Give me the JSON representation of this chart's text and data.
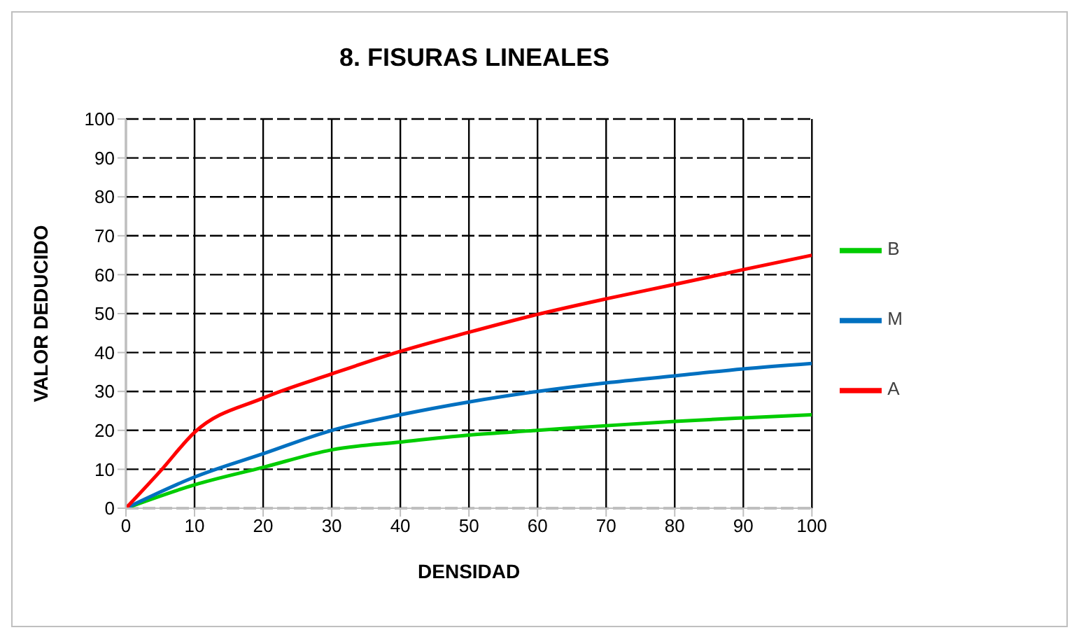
{
  "chart_data": {
    "type": "line",
    "title": "8. FISURAS LINEALES",
    "xlabel": "DENSIDAD",
    "ylabel": "VALOR DEDUCIDO",
    "xlim": [
      0,
      100
    ],
    "xticks": [
      0,
      10,
      20,
      30,
      40,
      50,
      60,
      70,
      80,
      90,
      100
    ],
    "ylim": [
      0,
      100
    ],
    "yticks": [
      0,
      10,
      20,
      30,
      40,
      50,
      60,
      70,
      80,
      90,
      100
    ],
    "grid": true,
    "legend": "right",
    "marker": "none",
    "line_style": "solid",
    "series": [
      {
        "name": "B",
        "color": "#00cc00",
        "x": [
          0,
          10,
          20,
          30,
          40,
          50,
          60,
          70,
          80,
          90,
          100
        ],
        "values": [
          0,
          6,
          10.5,
          15,
          17,
          18.8,
          20,
          21.2,
          22.3,
          23.2,
          24
        ]
      },
      {
        "name": "M",
        "color": "#0070c0",
        "x": [
          0,
          10,
          20,
          30,
          40,
          50,
          60,
          70,
          80,
          90,
          100
        ],
        "values": [
          0,
          8,
          14,
          20,
          24,
          27.3,
          30,
          32.2,
          34,
          35.8,
          37.2
        ]
      },
      {
        "name": "A",
        "color": "#ff0000",
        "x": [
          0,
          5,
          10,
          20,
          30,
          40,
          50,
          60,
          70,
          80,
          90,
          100
        ],
        "values": [
          0,
          9.5,
          19.5,
          28.3,
          34.5,
          40.3,
          45.2,
          49.8,
          53.8,
          57.5,
          61.3,
          65
        ]
      }
    ]
  }
}
